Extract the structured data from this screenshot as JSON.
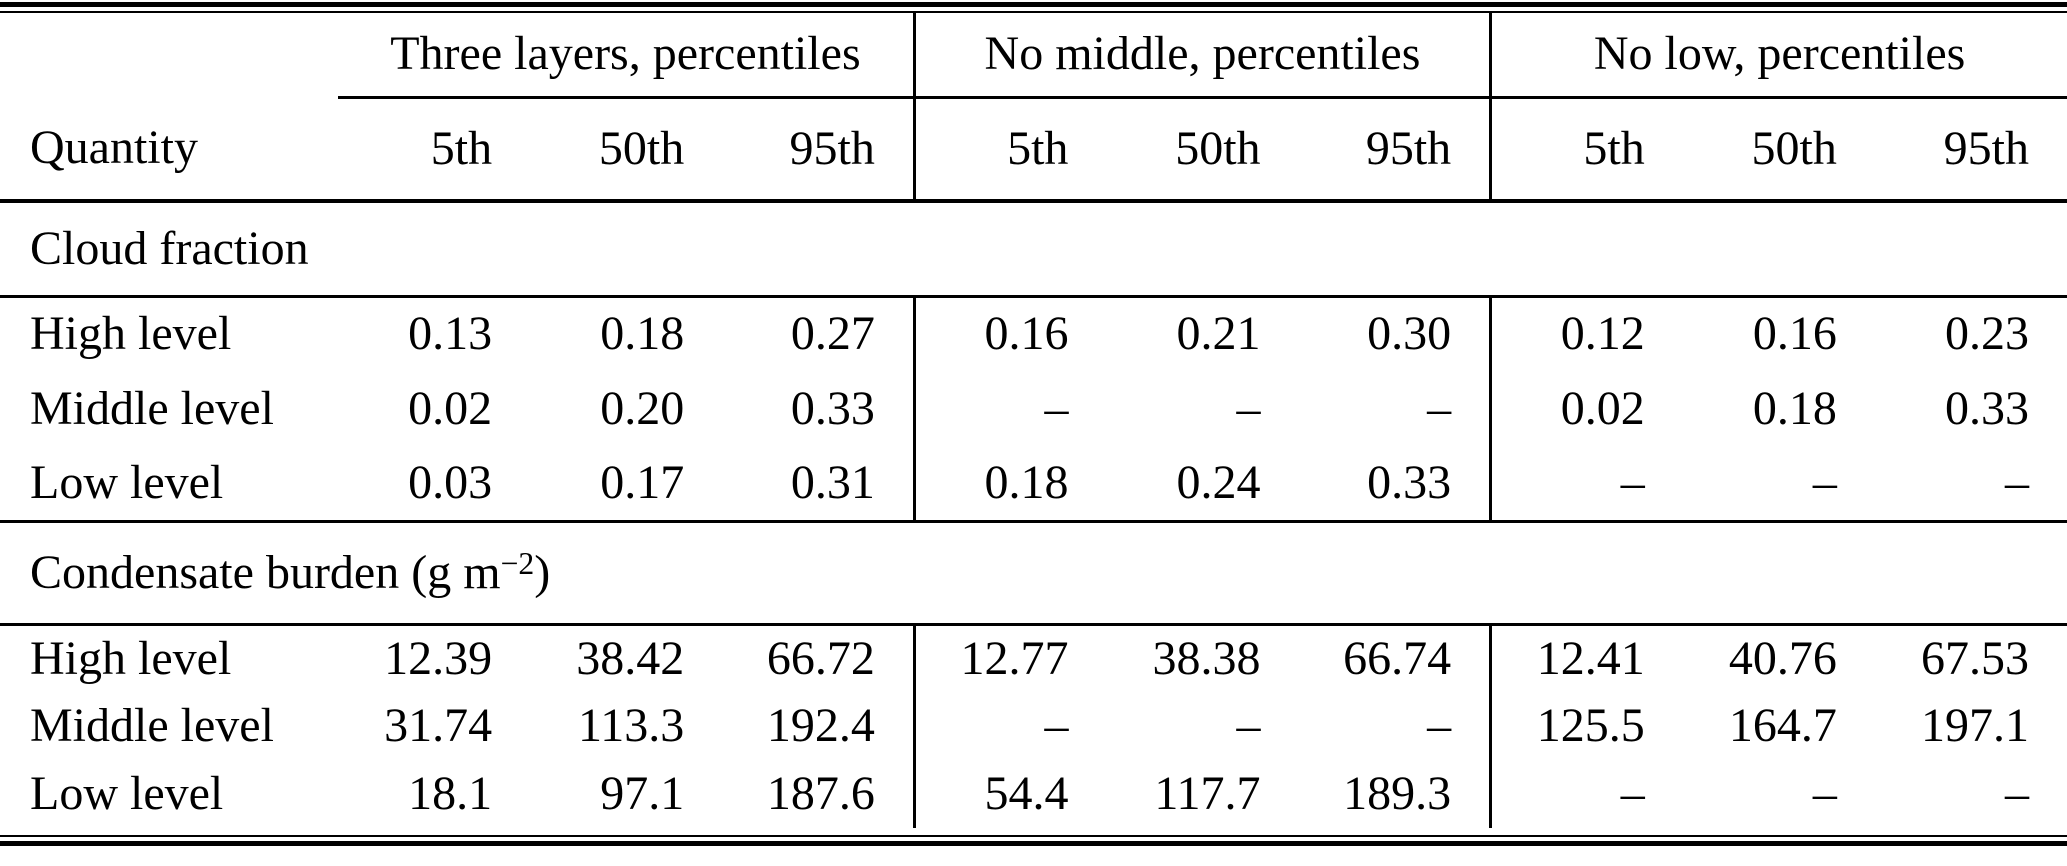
{
  "colors": {
    "text": "#000000",
    "background": "#ffffff",
    "rules": "#000000"
  },
  "table": {
    "corner_label": "Quantity",
    "groups": [
      {
        "label": "Three layers, percentiles"
      },
      {
        "label": "No middle, percentiles"
      },
      {
        "label": "No low, percentiles"
      }
    ],
    "percentiles": [
      "5th",
      "50th",
      "95th"
    ],
    "sections": [
      {
        "title_prefix": "Cloud fraction",
        "title_sup": "",
        "title_suffix": "",
        "rows": [
          {
            "label": "High level",
            "values": [
              "0.13",
              "0.18",
              "0.27",
              "0.16",
              "0.21",
              "0.30",
              "0.12",
              "0.16",
              "0.23"
            ]
          },
          {
            "label": "Middle level",
            "values": [
              "0.02",
              "0.20",
              "0.33",
              "–",
              "–",
              "–",
              "0.02",
              "0.18",
              "0.33"
            ]
          },
          {
            "label": "Low level",
            "values": [
              "0.03",
              "0.17",
              "0.31",
              "0.18",
              "0.24",
              "0.33",
              "–",
              "–",
              "–"
            ]
          }
        ]
      },
      {
        "title_prefix": "Condensate burden (g m",
        "title_sup": "−2",
        "title_suffix": ")",
        "rows": [
          {
            "label": "High level",
            "values": [
              "12.39",
              "38.42",
              "66.72",
              "12.77",
              "38.38",
              "66.74",
              "12.41",
              "40.76",
              "67.53"
            ]
          },
          {
            "label": "Middle level",
            "values": [
              "31.74",
              "113.3",
              "192.4",
              "–",
              "–",
              "–",
              "125.5",
              "164.7",
              "197.1"
            ]
          },
          {
            "label": "Low level",
            "values": [
              "18.1",
              "97.1",
              "187.6",
              "54.4",
              "117.7",
              "189.3",
              "–",
              "–",
              "–"
            ]
          }
        ]
      }
    ]
  }
}
